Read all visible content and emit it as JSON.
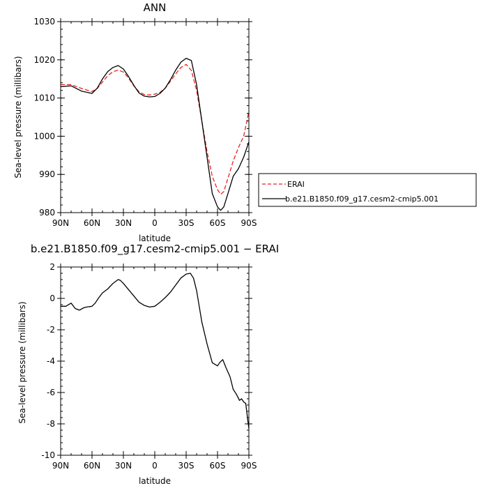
{
  "chart_data": [
    {
      "type": "line",
      "title": "ANN",
      "xlabel": "latitude",
      "ylabel": "Sea-level pressure (millibars)",
      "xlim": [
        90,
        -90
      ],
      "ylim": [
        980,
        1030
      ],
      "xticks": [
        {
          "value": 90,
          "label": "90N"
        },
        {
          "value": 60,
          "label": "60N"
        },
        {
          "value": 30,
          "label": "30N"
        },
        {
          "value": 0,
          "label": "0"
        },
        {
          "value": -30,
          "label": "30S"
        },
        {
          "value": -60,
          "label": "60S"
        },
        {
          "value": -90,
          "label": "90S"
        }
      ],
      "yticks": [
        980,
        990,
        1000,
        1010,
        1020,
        1030
      ],
      "legend": {
        "placement": "right"
      },
      "series": [
        {
          "name": "ERAI",
          "color": "#e8231f",
          "style": "dashed",
          "x": [
            90,
            80,
            70,
            60,
            55,
            50,
            45,
            40,
            35,
            30,
            25,
            20,
            15,
            10,
            5,
            0,
            -5,
            -10,
            -15,
            -20,
            -25,
            -30,
            -35,
            -40,
            -45,
            -50,
            -55,
            -60,
            -63,
            -66,
            -70,
            -75,
            -80,
            -85,
            -90
          ],
          "y": [
            1013.5,
            1013.5,
            1012.5,
            1011.7,
            1012.5,
            1014.2,
            1015.8,
            1016.9,
            1017.3,
            1016.8,
            1015.2,
            1013.2,
            1011.6,
            1010.9,
            1010.8,
            1011.0,
            1011.5,
            1012.6,
            1014.4,
            1016.3,
            1018.0,
            1018.8,
            1017.2,
            1012.0,
            1004.0,
            996.0,
            989.5,
            986.0,
            984.8,
            985.5,
            989.0,
            993.5,
            997.0,
            1000.0,
            1006.5
          ]
        },
        {
          "name": "b.e21.B1850.f09_g17.cesm2-cmip5.001",
          "color": "#000000",
          "style": "solid",
          "x": [
            90,
            80,
            70,
            60,
            55,
            50,
            45,
            40,
            35,
            30,
            25,
            20,
            15,
            10,
            5,
            0,
            -5,
            -10,
            -15,
            -20,
            -25,
            -30,
            -35,
            -40,
            -45,
            -50,
            -55,
            -60,
            -63,
            -66,
            -70,
            -75,
            -80,
            -85,
            -90
          ],
          "y": [
            1013.0,
            1013.2,
            1011.8,
            1011.2,
            1012.6,
            1015.0,
            1016.9,
            1018.0,
            1018.5,
            1017.6,
            1015.6,
            1013.3,
            1011.3,
            1010.5,
            1010.3,
            1010.4,
            1011.2,
            1012.6,
            1014.8,
            1017.3,
            1019.4,
            1020.4,
            1019.8,
            1013.5,
            1004.0,
            994.5,
            985.0,
            981.5,
            980.6,
            981.5,
            985.0,
            989.5,
            991.5,
            994.5,
            998.5
          ]
        }
      ]
    },
    {
      "type": "line",
      "title": "b.e21.B1850.f09_g17.cesm2-cmip5.001 − ERAI",
      "xlabel": "latitude",
      "ylabel": "Sea-level pressure (millibars)",
      "xlim": [
        90,
        -90
      ],
      "ylim": [
        -10,
        2
      ],
      "xticks": [
        {
          "value": 90,
          "label": "90N"
        },
        {
          "value": 60,
          "label": "60N"
        },
        {
          "value": 30,
          "label": "30N"
        },
        {
          "value": 0,
          "label": "0"
        },
        {
          "value": -30,
          "label": "30S"
        },
        {
          "value": -60,
          "label": "60S"
        },
        {
          "value": -90,
          "label": "90S"
        }
      ],
      "yticks": [
        -10,
        -8,
        -6,
        -4,
        -2,
        0,
        2
      ],
      "series": [
        {
          "color": "#000000",
          "style": "solid",
          "x": [
            90,
            85,
            80,
            76,
            72,
            68,
            65,
            60,
            57,
            54,
            50,
            45,
            40,
            35,
            33,
            30,
            25,
            20,
            15,
            10,
            5,
            0,
            -5,
            -10,
            -15,
            -20,
            -25,
            -30,
            -34,
            -37,
            -40,
            -45,
            -50,
            -55,
            -60,
            -62,
            -65,
            -68,
            -72,
            -75,
            -78,
            -81,
            -83,
            -85,
            -87,
            -89,
            -90
          ],
          "y": [
            -0.5,
            -0.5,
            -0.3,
            -0.65,
            -0.75,
            -0.6,
            -0.55,
            -0.5,
            -0.3,
            0.0,
            0.35,
            0.6,
            0.95,
            1.2,
            1.15,
            0.95,
            0.55,
            0.15,
            -0.25,
            -0.45,
            -0.55,
            -0.5,
            -0.25,
            0.05,
            0.4,
            0.85,
            1.3,
            1.55,
            1.6,
            1.3,
            0.5,
            -1.5,
            -2.9,
            -4.1,
            -4.3,
            -4.1,
            -3.9,
            -4.4,
            -5.0,
            -5.8,
            -6.1,
            -6.5,
            -6.4,
            -6.6,
            -6.7,
            -7.8,
            -8.3
          ]
        }
      ]
    }
  ]
}
